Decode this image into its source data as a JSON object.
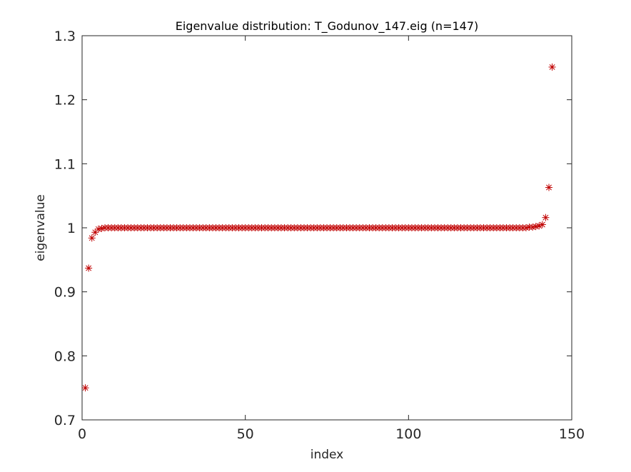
{
  "chart_data": {
    "type": "scatter",
    "title": "Eigenvalue distribution: T_Godunov_147.eig (n=147)",
    "xlabel": "index",
    "ylabel": "eigenvalue",
    "xlim": [
      0,
      150
    ],
    "ylim": [
      0.7,
      1.3
    ],
    "xticks": [
      0,
      50,
      100,
      150
    ],
    "yticks": [
      0.7,
      0.8,
      0.9,
      1.0,
      1.1,
      1.2,
      1.3
    ],
    "xtick_labels": [
      "0",
      "50",
      "100",
      "150"
    ],
    "ytick_labels": [
      "0.7",
      "0.8",
      "0.9",
      "1",
      "1.1",
      "1.2",
      "1.3"
    ],
    "grid": false,
    "marker": "asterisk",
    "marker_color": "#c00000",
    "series": [
      {
        "values": [
          0.75,
          0.937,
          0.984,
          0.993,
          0.998,
          0.999,
          1,
          1,
          1,
          1,
          1,
          1,
          1,
          1,
          1,
          1,
          1,
          1,
          1,
          1,
          1,
          1,
          1,
          1,
          1,
          1,
          1,
          1,
          1,
          1,
          1,
          1,
          1,
          1,
          1,
          1,
          1,
          1,
          1,
          1,
          1,
          1,
          1,
          1,
          1,
          1,
          1,
          1,
          1,
          1,
          1,
          1,
          1,
          1,
          1,
          1,
          1,
          1,
          1,
          1,
          1,
          1,
          1,
          1,
          1,
          1,
          1,
          1,
          1,
          1,
          1,
          1,
          1,
          1,
          1,
          1,
          1,
          1,
          1,
          1,
          1,
          1,
          1,
          1,
          1,
          1,
          1,
          1,
          1,
          1,
          1,
          1,
          1,
          1,
          1,
          1,
          1,
          1,
          1,
          1,
          1,
          1,
          1,
          1,
          1,
          1,
          1,
          1,
          1,
          1,
          1,
          1,
          1,
          1,
          1,
          1,
          1,
          1,
          1,
          1,
          1,
          1,
          1,
          1,
          1,
          1,
          1,
          1,
          1,
          1,
          1,
          1,
          1,
          1,
          1,
          1,
          1.001,
          1.001,
          1.002,
          1.003,
          1.005,
          1.016,
          1.063,
          1.251
        ]
      }
    ]
  }
}
